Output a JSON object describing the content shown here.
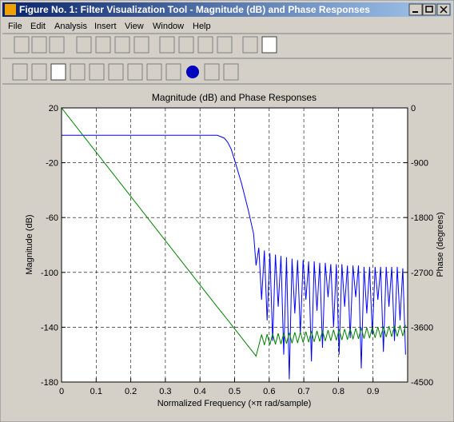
{
  "window": {
    "title": "Figure No. 1: Filter Visualization Tool - Magnitude (dB) and Phase Responses",
    "menu": [
      "File",
      "Edit",
      "Analysis",
      "Insert",
      "View",
      "Window",
      "Help"
    ]
  },
  "chart_data": {
    "type": "line",
    "title": "Magnitude (dB) and Phase Responses",
    "xlabel": "Normalized Frequency (×π rad/sample)",
    "ylabel": "Magnitude (dB)",
    "y2label": "Phase (degrees)",
    "x": [
      0,
      0.45,
      0.47,
      0.48,
      0.49,
      0.5,
      0.52,
      0.54,
      0.555,
      0.562,
      0.57,
      0.578,
      0.586,
      0.594,
      0.602,
      0.61,
      0.618,
      0.626,
      0.634,
      0.642,
      0.65,
      0.658,
      0.666,
      0.674,
      0.682,
      0.69,
      0.698,
      0.706,
      0.714,
      0.722,
      0.73,
      0.738,
      0.746,
      0.754,
      0.762,
      0.77,
      0.778,
      0.786,
      0.794,
      0.802,
      0.81,
      0.818,
      0.826,
      0.834,
      0.842,
      0.85,
      0.858,
      0.866,
      0.874,
      0.882,
      0.89,
      0.898,
      0.906,
      0.914,
      0.922,
      0.93,
      0.938,
      0.946,
      0.954,
      0.962,
      0.97,
      0.978,
      0.986,
      0.994
    ],
    "series": [
      {
        "color": "#0000ff",
        "values": [
          0,
          0,
          -2,
          -5,
          -10,
          -18,
          -35,
          -55,
          -72,
          -95,
          -82,
          -120,
          -84,
          -135,
          -86,
          -150,
          -87,
          -125,
          -88,
          -160,
          -89,
          -178,
          -90,
          -130,
          -91,
          -145,
          -91,
          -120,
          -92,
          -165,
          -92,
          -128,
          -93,
          -155,
          -93,
          -118,
          -94,
          -140,
          -94,
          -160,
          -94,
          -125,
          -95,
          -148,
          -95,
          -118,
          -95,
          -170,
          -96,
          -130,
          -96,
          -145,
          -96,
          -120,
          -96,
          -158,
          -96,
          -125,
          -96,
          -150,
          -96,
          -135,
          -97,
          -160
        ]
      },
      {
        "color": "#008000",
        "axis": "y2",
        "values": [
          0,
          -3268,
          -3408,
          -3480,
          -3553,
          -3625,
          -3770,
          -3915,
          -4024,
          -4075,
          -3900,
          -3720,
          -3894,
          -3714,
          -3888,
          -3708,
          -3882,
          -3702,
          -3876,
          -3696,
          -3870,
          -3690,
          -3864,
          -3684,
          -3858,
          -3678,
          -3852,
          -3672,
          -3846,
          -3666,
          -3840,
          -3660,
          -3834,
          -3654,
          -3828,
          -3648,
          -3822,
          -3642,
          -3816,
          -3636,
          -3810,
          -3630,
          -3804,
          -3624,
          -3798,
          -3618,
          -3792,
          -3612,
          -3786,
          -3606,
          -3780,
          -3600,
          -3774,
          -3594,
          -3768,
          -3588,
          -3762,
          -3582,
          -3756,
          -3576,
          -3750,
          -3570,
          -3744,
          -3564
        ]
      }
    ],
    "xlim": [
      0,
      1
    ],
    "xticks": [
      0,
      0.1,
      0.2,
      0.3,
      0.4,
      0.5,
      0.6,
      0.7,
      0.8,
      0.9
    ],
    "ylim": [
      -180,
      20
    ],
    "yticks": [
      20,
      -20,
      -60,
      -100,
      -140,
      -180
    ],
    "y2lim": [
      -4500,
      0
    ],
    "y2ticks": [
      0,
      -900,
      -1800,
      -2700,
      -3600,
      -4500
    ],
    "grid": true
  }
}
